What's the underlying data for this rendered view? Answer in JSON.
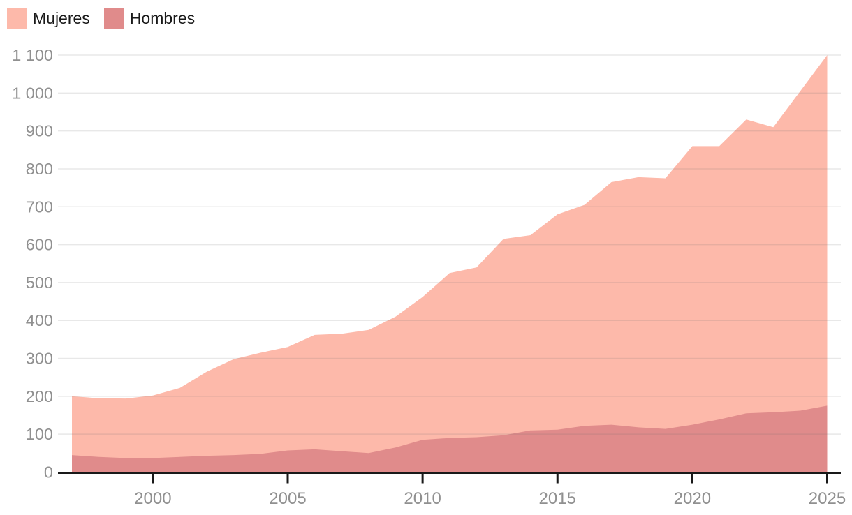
{
  "legend": [
    {
      "label": "Mujeres",
      "color": "#fdb9aa"
    },
    {
      "label": "Hombres",
      "color": "#e08b8b"
    }
  ],
  "colors": {
    "mujeres_area": "#fdb9aa",
    "hombres_area": "#e08b8b",
    "axis": "#191919",
    "tick_label": "#909090",
    "gridline": "rgba(110,110,110,0.16)",
    "background": "#ffffff"
  },
  "chart_data": {
    "type": "area",
    "title": "",
    "xlabel": "",
    "ylabel": "",
    "stacked": false,
    "grid": true,
    "legend_position": "top-left",
    "x": [
      1997,
      1998,
      1999,
      2000,
      2001,
      2002,
      2003,
      2004,
      2005,
      2006,
      2007,
      2008,
      2009,
      2010,
      2011,
      2012,
      2013,
      2014,
      2015,
      2016,
      2017,
      2018,
      2019,
      2020,
      2021,
      2022,
      2023,
      2024,
      2025
    ],
    "series": [
      {
        "name": "Mujeres",
        "color": "#fdb9aa",
        "values": [
          200,
          195,
          194,
          202,
          222,
          265,
          298,
          315,
          330,
          362,
          365,
          375,
          410,
          462,
          525,
          540,
          615,
          625,
          680,
          705,
          765,
          778,
          775,
          860,
          860,
          930,
          910,
          1005,
          1100
        ]
      },
      {
        "name": "Hombres",
        "color": "#e08b8b",
        "values": [
          45,
          40,
          37,
          37,
          40,
          43,
          45,
          48,
          57,
          60,
          55,
          50,
          65,
          85,
          90,
          92,
          97,
          110,
          112,
          122,
          125,
          118,
          114,
          125,
          139,
          155,
          158,
          162,
          175
        ]
      }
    ],
    "xlim": [
      1997,
      2025
    ],
    "ylim": [
      0,
      1100
    ],
    "x_ticks": [
      2000,
      2005,
      2010,
      2015,
      2020,
      2025
    ],
    "y_ticks": [
      0,
      100,
      200,
      300,
      400,
      500,
      600,
      700,
      800,
      900,
      1000,
      1100
    ],
    "y_tick_labels": [
      "0",
      "100",
      "200",
      "300",
      "400",
      "500",
      "600",
      "700",
      "800",
      "900",
      "1 000",
      "1 100"
    ]
  }
}
